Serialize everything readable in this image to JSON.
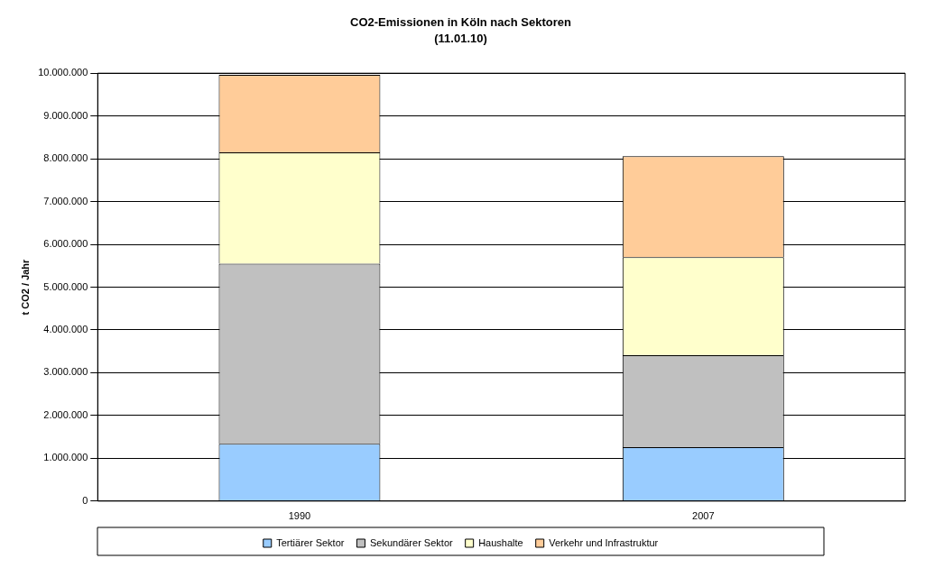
{
  "chart_data": {
    "type": "bar",
    "title": "CO2-Emissionen in Köln nach Sektoren",
    "subtitle": "(11.01.10)",
    "ylabel": "t CO2 / Jahr",
    "categories": [
      "1990",
      "2007"
    ],
    "stacked": true,
    "grid": "y",
    "legend": "bottom",
    "ylim": [
      0,
      10000000
    ],
    "yticks": [
      {
        "value": 0,
        "label": "0"
      },
      {
        "value": 1000000,
        "label": "1.000.000"
      },
      {
        "value": 2000000,
        "label": "2.000.000"
      },
      {
        "value": 3000000,
        "label": "3.000.000"
      },
      {
        "value": 4000000,
        "label": "4.000.000"
      },
      {
        "value": 5000000,
        "label": "5.000.000"
      },
      {
        "value": 6000000,
        "label": "6.000.000"
      },
      {
        "value": 7000000,
        "label": "7.000.000"
      },
      {
        "value": 8000000,
        "label": "8.000.000"
      },
      {
        "value": 9000000,
        "label": "9.000.000"
      },
      {
        "value": 10000000,
        "label": "10.000.000"
      }
    ],
    "series": [
      {
        "name": "Tertiärer Sektor",
        "color": "#99ccff",
        "values": [
          1340000,
          1260000
        ]
      },
      {
        "name": "Sekundärer Sektor",
        "color": "#c0c0c0",
        "values": [
          4210000,
          2150000
        ]
      },
      {
        "name": "Haushalte",
        "color": "#ffffcc",
        "values": [
          2600000,
          2290000
        ]
      },
      {
        "name": "Verkehr und Infrastruktur",
        "color": "#ffcc99",
        "values": [
          1810000,
          2360000
        ]
      }
    ]
  }
}
